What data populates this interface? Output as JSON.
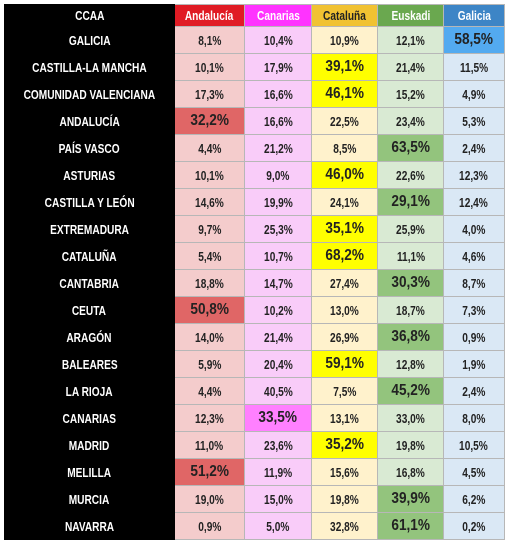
{
  "table": {
    "header": [
      "CCAA",
      "Andalucía",
      "Canarias",
      "Cataluña",
      "Euskadi",
      "Galicia"
    ],
    "rows": [
      {
        "label": "GALICIA",
        "cells": [
          "8,1%",
          "10,4%",
          "10,9%",
          "12,1%",
          "58,5%"
        ],
        "highlight": 4
      },
      {
        "label": "CASTILLA-LA MANCHA",
        "cells": [
          "10,1%",
          "17,9%",
          "39,1%",
          "21,4%",
          "11,5%"
        ],
        "highlight": 2
      },
      {
        "label": "COMUNIDAD VALENCIANA",
        "cells": [
          "17,3%",
          "16,6%",
          "46,1%",
          "15,2%",
          "4,9%"
        ],
        "highlight": 2
      },
      {
        "label": "ANDALUCÍA",
        "cells": [
          "32,2%",
          "16,6%",
          "22,5%",
          "23,4%",
          "5,3%"
        ],
        "highlight": 0
      },
      {
        "label": "PAÍS VASCO",
        "cells": [
          "4,4%",
          "21,2%",
          "8,5%",
          "63,5%",
          "2,4%"
        ],
        "highlight": 3
      },
      {
        "label": "ASTURIAS",
        "cells": [
          "10,1%",
          "9,0%",
          "46,0%",
          "22,6%",
          "12,3%"
        ],
        "highlight": 2
      },
      {
        "label": "CASTILLA Y LEÓN",
        "cells": [
          "14,6%",
          "19,9%",
          "24,1%",
          "29,1%",
          "12,4%"
        ],
        "highlight": 3
      },
      {
        "label": "EXTREMADURA",
        "cells": [
          "9,7%",
          "25,3%",
          "35,1%",
          "25,9%",
          "4,0%"
        ],
        "highlight": 2
      },
      {
        "label": "CATALUÑA",
        "cells": [
          "5,4%",
          "10,7%",
          "68,2%",
          "11,1%",
          "4,6%"
        ],
        "highlight": 2
      },
      {
        "label": "CANTABRIA",
        "cells": [
          "18,8%",
          "14,7%",
          "27,4%",
          "30,3%",
          "8,7%"
        ],
        "highlight": 3
      },
      {
        "label": "CEUTA",
        "cells": [
          "50,8%",
          "10,2%",
          "13,0%",
          "18,7%",
          "7,3%"
        ],
        "highlight": 0
      },
      {
        "label": "ARAGÓN",
        "cells": [
          "14,0%",
          "21,4%",
          "26,9%",
          "36,8%",
          "0,9%"
        ],
        "highlight": 3
      },
      {
        "label": "BALEARES",
        "cells": [
          "5,9%",
          "20,4%",
          "59,1%",
          "12,8%",
          "1,9%"
        ],
        "highlight": 2
      },
      {
        "label": "LA RIOJA",
        "cells": [
          "4,4%",
          "40,5%",
          "7,5%",
          "45,2%",
          "2,4%"
        ],
        "highlight": 3
      },
      {
        "label": "CANARIAS",
        "cells": [
          "12,3%",
          "33,5%",
          "13,1%",
          "33,0%",
          "8,0%"
        ],
        "highlight": 1
      },
      {
        "label": "MADRID",
        "cells": [
          "11,0%",
          "23,6%",
          "35,2%",
          "19,8%",
          "10,5%"
        ],
        "highlight": 2
      },
      {
        "label": "MELILLA",
        "cells": [
          "51,2%",
          "11,9%",
          "15,6%",
          "16,8%",
          "4,5%"
        ],
        "highlight": 0
      },
      {
        "label": "MURCIA",
        "cells": [
          "19,0%",
          "15,0%",
          "19,8%",
          "39,9%",
          "6,2%"
        ],
        "highlight": 3
      },
      {
        "label": "NAVARRA",
        "cells": [
          "0,9%",
          "5,0%",
          "32,8%",
          "61,1%",
          "0,2%"
        ],
        "highlight": 3
      }
    ]
  }
}
